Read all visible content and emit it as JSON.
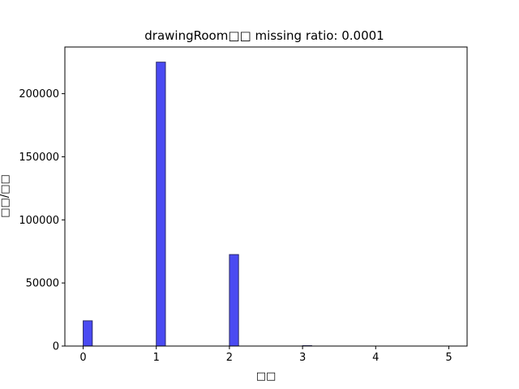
{
  "chart_data": {
    "type": "bar",
    "title": "drawingRoom□□  missing ratio: 0.0001",
    "xlabel": "□□",
    "ylabel": "□□/□□",
    "xlim": [
      -0.25,
      5.25
    ],
    "ylim": [
      0,
      237000
    ],
    "xticks": [
      0,
      1,
      2,
      3,
      4,
      5
    ],
    "xtick_labels": [
      "0",
      "1",
      "2",
      "3",
      "4",
      "5"
    ],
    "yticks": [
      0,
      50000,
      100000,
      150000,
      200000
    ],
    "ytick_labels": [
      "0",
      "50000",
      "100000",
      "150000",
      "200000"
    ],
    "bin_width": 0.125,
    "bars": [
      {
        "x": 0,
        "value": 20000
      },
      {
        "x": 1,
        "value": 225000
      },
      {
        "x": 2,
        "value": 72500
      },
      {
        "x": 3,
        "value": 300
      }
    ],
    "grid": false,
    "colors": {
      "bar_fill": "#4a4af2",
      "bar_edge": "#2c2c6a"
    }
  }
}
